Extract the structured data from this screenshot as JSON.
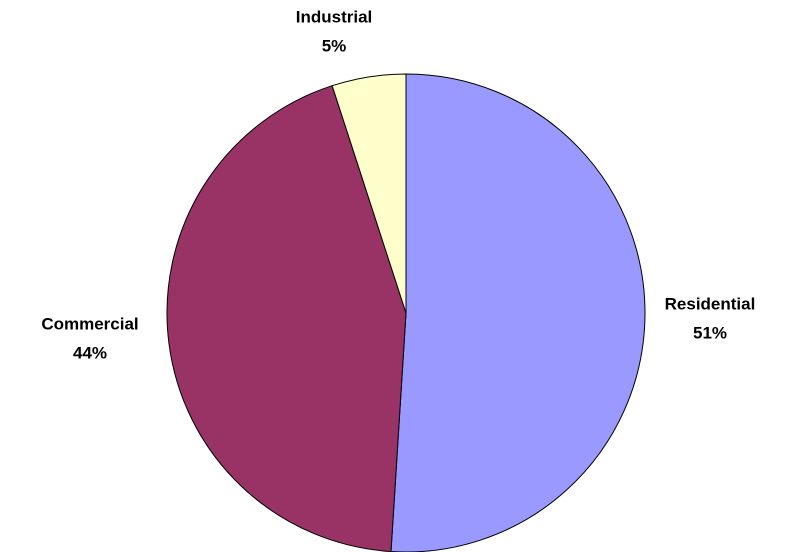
{
  "chart_data": {
    "type": "pie",
    "categories": [
      "Residential",
      "Commercial",
      "Industrial"
    ],
    "values": [
      51,
      44,
      5
    ],
    "value_labels": [
      "51%",
      "44%",
      "5%"
    ],
    "colors": [
      "#9999ff",
      "#993366",
      "#ffffcc"
    ]
  }
}
